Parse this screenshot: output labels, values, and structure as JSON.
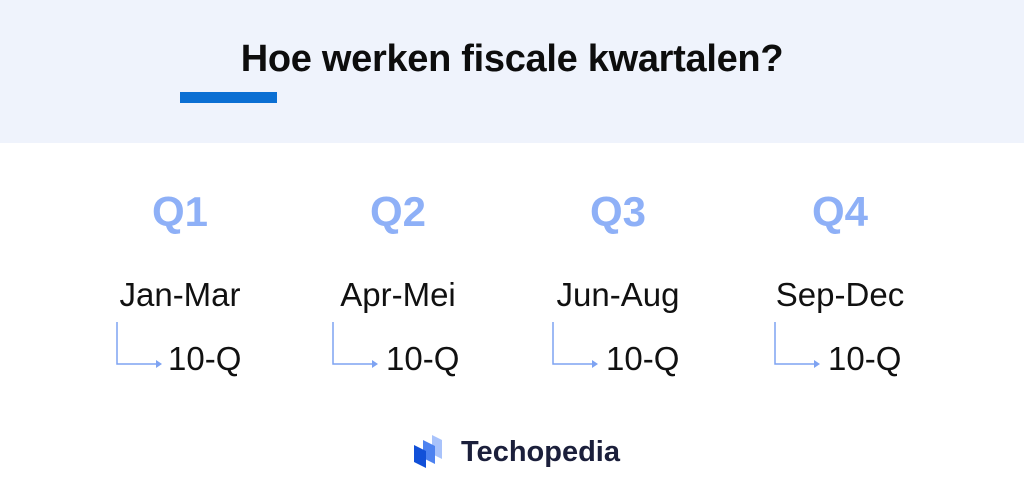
{
  "title": "Hoe werken fiscale kwartalen?",
  "accent_color": "#0b6fd3",
  "quarter_color": "#8eb0f7",
  "quarters": [
    {
      "label": "Q1",
      "months": "Jan-Mar",
      "filing": "10-Q"
    },
    {
      "label": "Q2",
      "months": "Apr-Mei",
      "filing": "10-Q"
    },
    {
      "label": "Q3",
      "months": "Jun-Aug",
      "filing": "10-Q"
    },
    {
      "label": "Q4",
      "months": "Sep-Dec",
      "filing": "10-Q"
    }
  ],
  "brand": {
    "name": "Techopedia",
    "icon": "techopedia-logo-icon"
  }
}
